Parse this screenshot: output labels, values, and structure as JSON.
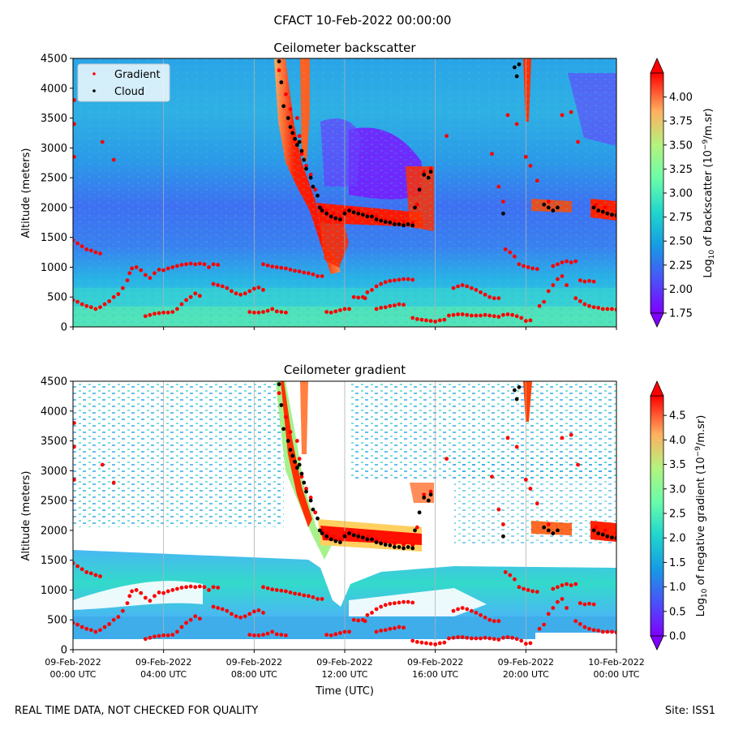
{
  "figure_title": "CFACT 10-Feb-2022 00:00:00",
  "footer_left": "REAL TIME DATA, NOT CHECKED FOR QUALITY",
  "footer_right": "Site: ISS1",
  "time_axis": {
    "xlabel": "Time (UTC)",
    "ticks": [
      {
        "date": "09-Feb-2022",
        "time": "00:00 UTC"
      },
      {
        "date": "09-Feb-2022",
        "time": "04:00 UTC"
      },
      {
        "date": "09-Feb-2022",
        "time": "08:00 UTC"
      },
      {
        "date": "09-Feb-2022",
        "time": "12:00 UTC"
      },
      {
        "date": "09-Feb-2022",
        "time": "16:00 UTC"
      },
      {
        "date": "09-Feb-2022",
        "time": "20:00 UTC"
      },
      {
        "date": "10-Feb-2022",
        "time": "00:00 UTC"
      }
    ]
  },
  "legend": {
    "gradient_label": "Gradient",
    "cloud_label": "Cloud"
  },
  "colors": {
    "gradient_marker": "#ff0000",
    "cloud_marker": "#000000"
  },
  "chart_data": [
    {
      "type": "heatmap",
      "title": "Ceilometer backscatter",
      "ylabel": "Altitude (meters)",
      "ylim": [
        0,
        4500
      ],
      "yticks": [
        0,
        500,
        1000,
        1500,
        2000,
        2500,
        3000,
        3500,
        4000,
        4500
      ],
      "colorbar": {
        "label": "Log10 of backscatter (10^-9/m.sr)",
        "label_main": "Log",
        "label_sub": "10",
        "label_rest": " of backscatter (10",
        "label_sup": "−9",
        "label_end": "/m.sr)",
        "range": [
          1.75,
          4.25
        ],
        "ticks": [
          "1.75",
          "2.00",
          "2.25",
          "2.50",
          "2.75",
          "3.00",
          "3.25",
          "3.50",
          "3.75",
          "4.00"
        ],
        "colormap": "rainbow"
      },
      "legend_placement": "top-left",
      "grid": "vertical lines at tick positions"
    },
    {
      "type": "heatmap",
      "title": "Ceilometer gradient",
      "ylabel": "Altitude (meters)",
      "ylim": [
        0,
        4500
      ],
      "yticks": [
        0,
        500,
        1000,
        1500,
        2000,
        2500,
        3000,
        3500,
        4000,
        4500
      ],
      "colorbar": {
        "label": "Log10 of negative gradient (10^-9/m.sr)",
        "label_main": "Log",
        "label_sub": "10",
        "label_rest": " of negative gradient (10",
        "label_sup": "−9",
        "label_end": "/m.sr)",
        "range": [
          0.0,
          4.9
        ],
        "ticks": [
          "0.0",
          "0.5",
          "1.0",
          "1.5",
          "2.0",
          "2.5",
          "3.0",
          "3.5",
          "4.0",
          "4.5"
        ],
        "colormap": "rainbow"
      },
      "grid": "vertical lines at tick positions"
    }
  ],
  "series_points": {
    "x_unit": "hours since 09-Feb-2022 00:00 UTC",
    "y_unit": "meters",
    "cloud_base": [
      [
        9.1,
        4450
      ],
      [
        9.2,
        4100
      ],
      [
        9.3,
        3700
      ],
      [
        9.5,
        3500
      ],
      [
        9.6,
        3350
      ],
      [
        9.7,
        3250
      ],
      [
        9.8,
        3150
      ],
      [
        9.9,
        3050
      ],
      [
        10.0,
        3100
      ],
      [
        10.1,
        2950
      ],
      [
        10.2,
        2800
      ],
      [
        10.3,
        2650
      ],
      [
        10.5,
        2500
      ],
      [
        10.6,
        2350
      ],
      [
        10.8,
        2200
      ],
      [
        10.9,
        2000
      ],
      [
        11.0,
        1950
      ],
      [
        11.2,
        1900
      ],
      [
        11.4,
        1850
      ],
      [
        11.6,
        1820
      ],
      [
        11.8,
        1800
      ],
      [
        12.0,
        1900
      ],
      [
        12.2,
        1950
      ],
      [
        12.4,
        1920
      ],
      [
        12.6,
        1900
      ],
      [
        12.8,
        1880
      ],
      [
        13.0,
        1850
      ],
      [
        13.2,
        1850
      ],
      [
        13.4,
        1800
      ],
      [
        13.6,
        1780
      ],
      [
        13.8,
        1760
      ],
      [
        14.0,
        1750
      ],
      [
        14.2,
        1720
      ],
      [
        14.4,
        1720
      ],
      [
        14.6,
        1700
      ],
      [
        14.8,
        1720
      ],
      [
        15.0,
        1700
      ],
      [
        15.1,
        2000
      ],
      [
        15.3,
        2300
      ],
      [
        15.5,
        2550
      ],
      [
        15.7,
        2500
      ],
      [
        15.8,
        2600
      ],
      [
        19.0,
        1900
      ],
      [
        19.5,
        4350
      ],
      [
        19.6,
        4200
      ],
      [
        19.7,
        4400
      ],
      [
        20.8,
        2050
      ],
      [
        21.0,
        2000
      ],
      [
        21.2,
        1950
      ],
      [
        21.4,
        2000
      ],
      [
        23.0,
        2000
      ],
      [
        23.2,
        1950
      ],
      [
        23.4,
        1930
      ],
      [
        23.6,
        1900
      ],
      [
        23.8,
        1880
      ],
      [
        24.0,
        1870
      ]
    ],
    "gradient_upper": [
      [
        0.05,
        3800
      ],
      [
        0.05,
        3400
      ],
      [
        0.05,
        2850
      ],
      [
        1.3,
        3100
      ],
      [
        1.8,
        2800
      ],
      [
        9.1,
        4300
      ],
      [
        9.4,
        3900
      ],
      [
        9.6,
        3650
      ],
      [
        9.9,
        3500
      ],
      [
        10.0,
        3200
      ],
      [
        10.1,
        2900
      ],
      [
        10.3,
        2700
      ],
      [
        10.5,
        2550
      ],
      [
        10.7,
        2300
      ],
      [
        11.0,
        2000
      ],
      [
        11.2,
        1950
      ],
      [
        11.5,
        1900
      ],
      [
        11.8,
        1850
      ],
      [
        12.0,
        1950
      ],
      [
        12.3,
        1980
      ],
      [
        12.6,
        1950
      ],
      [
        13.0,
        1900
      ],
      [
        13.4,
        1850
      ],
      [
        13.8,
        1800
      ],
      [
        14.2,
        1780
      ],
      [
        14.6,
        1760
      ],
      [
        15.0,
        1750
      ],
      [
        15.2,
        2050
      ],
      [
        15.5,
        2600
      ],
      [
        15.8,
        2650
      ],
      [
        19.2,
        3550
      ],
      [
        19.6,
        3400
      ],
      [
        20.0,
        2850
      ],
      [
        20.2,
        2700
      ],
      [
        20.5,
        2450
      ],
      [
        21.0,
        2100
      ],
      [
        21.6,
        3550
      ],
      [
        22.0,
        3600
      ],
      [
        22.3,
        3100
      ],
      [
        23.1,
        2050
      ],
      [
        23.5,
        2000
      ],
      [
        24.0,
        1950
      ],
      [
        18.5,
        2900
      ],
      [
        18.8,
        2350
      ],
      [
        19.0,
        2100
      ],
      [
        16.5,
        3200
      ]
    ],
    "gradient_lower": [
      [
        0.0,
        1450
      ],
      [
        0.2,
        1400
      ],
      [
        0.4,
        1350
      ],
      [
        0.6,
        1300
      ],
      [
        0.8,
        1280
      ],
      [
        1.0,
        1250
      ],
      [
        1.2,
        1230
      ],
      [
        0.0,
        450
      ],
      [
        0.2,
        420
      ],
      [
        0.4,
        380
      ],
      [
        0.6,
        350
      ],
      [
        0.8,
        330
      ],
      [
        1.0,
        300
      ],
      [
        1.2,
        330
      ],
      [
        1.4,
        380
      ],
      [
        1.6,
        430
      ],
      [
        1.8,
        500
      ],
      [
        2.0,
        550
      ],
      [
        2.2,
        650
      ],
      [
        2.4,
        780
      ],
      [
        2.5,
        900
      ],
      [
        2.6,
        980
      ],
      [
        2.8,
        1000
      ],
      [
        3.0,
        950
      ],
      [
        3.2,
        870
      ],
      [
        3.4,
        820
      ],
      [
        3.6,
        900
      ],
      [
        3.8,
        960
      ],
      [
        4.0,
        950
      ],
      [
        4.2,
        980
      ],
      [
        4.4,
        1000
      ],
      [
        4.6,
        1020
      ],
      [
        4.8,
        1040
      ],
      [
        5.0,
        1050
      ],
      [
        5.2,
        1060
      ],
      [
        5.4,
        1050
      ],
      [
        5.6,
        1060
      ],
      [
        5.8,
        1050
      ],
      [
        6.0,
        1000
      ],
      [
        6.2,
        1050
      ],
      [
        6.4,
        1040
      ],
      [
        3.2,
        180
      ],
      [
        3.4,
        200
      ],
      [
        3.6,
        220
      ],
      [
        3.8,
        230
      ],
      [
        4.0,
        240
      ],
      [
        4.2,
        240
      ],
      [
        4.4,
        250
      ],
      [
        4.6,
        300
      ],
      [
        4.8,
        380
      ],
      [
        5.0,
        450
      ],
      [
        5.2,
        500
      ],
      [
        5.4,
        560
      ],
      [
        5.6,
        520
      ],
      [
        6.2,
        720
      ],
      [
        6.4,
        700
      ],
      [
        6.6,
        680
      ],
      [
        6.8,
        650
      ],
      [
        7.0,
        600
      ],
      [
        7.2,
        560
      ],
      [
        7.4,
        540
      ],
      [
        7.6,
        560
      ],
      [
        7.8,
        600
      ],
      [
        8.0,
        640
      ],
      [
        8.2,
        660
      ],
      [
        8.4,
        620
      ],
      [
        7.8,
        250
      ],
      [
        8.0,
        240
      ],
      [
        8.2,
        240
      ],
      [
        8.4,
        250
      ],
      [
        8.6,
        270
      ],
      [
        8.8,
        300
      ],
      [
        9.0,
        260
      ],
      [
        9.2,
        250
      ],
      [
        9.4,
        240
      ],
      [
        8.4,
        1050
      ],
      [
        8.6,
        1030
      ],
      [
        8.8,
        1010
      ],
      [
        9.0,
        1000
      ],
      [
        9.2,
        990
      ],
      [
        9.4,
        980
      ],
      [
        9.6,
        960
      ],
      [
        9.8,
        940
      ],
      [
        10.0,
        930
      ],
      [
        10.2,
        910
      ],
      [
        10.4,
        900
      ],
      [
        10.6,
        880
      ],
      [
        10.8,
        850
      ],
      [
        11.0,
        850
      ],
      [
        11.2,
        250
      ],
      [
        11.4,
        240
      ],
      [
        11.6,
        260
      ],
      [
        11.8,
        280
      ],
      [
        12.0,
        300
      ],
      [
        12.2,
        300
      ],
      [
        12.4,
        500
      ],
      [
        12.6,
        490
      ],
      [
        12.8,
        500
      ],
      [
        12.9,
        480
      ],
      [
        13.0,
        580
      ],
      [
        13.2,
        620
      ],
      [
        13.4,
        680
      ],
      [
        13.6,
        720
      ],
      [
        13.8,
        750
      ],
      [
        14.0,
        770
      ],
      [
        14.2,
        780
      ],
      [
        14.4,
        790
      ],
      [
        14.6,
        800
      ],
      [
        14.8,
        800
      ],
      [
        15.0,
        790
      ],
      [
        13.4,
        300
      ],
      [
        13.6,
        320
      ],
      [
        13.8,
        330
      ],
      [
        14.0,
        350
      ],
      [
        14.2,
        360
      ],
      [
        14.4,
        380
      ],
      [
        14.6,
        370
      ],
      [
        15.0,
        150
      ],
      [
        15.2,
        130
      ],
      [
        15.4,
        120
      ],
      [
        15.6,
        110
      ],
      [
        15.8,
        100
      ],
      [
        16.0,
        90
      ],
      [
        16.2,
        110
      ],
      [
        16.4,
        120
      ],
      [
        16.8,
        650
      ],
      [
        17.0,
        680
      ],
      [
        17.2,
        700
      ],
      [
        17.4,
        680
      ],
      [
        17.6,
        650
      ],
      [
        17.8,
        620
      ],
      [
        18.0,
        580
      ],
      [
        18.2,
        540
      ],
      [
        18.4,
        500
      ],
      [
        18.6,
        480
      ],
      [
        18.8,
        480
      ],
      [
        16.6,
        190
      ],
      [
        16.8,
        200
      ],
      [
        17.0,
        210
      ],
      [
        17.2,
        210
      ],
      [
        17.4,
        200
      ],
      [
        17.6,
        190
      ],
      [
        17.8,
        190
      ],
      [
        18.0,
        190
      ],
      [
        18.2,
        200
      ],
      [
        18.4,
        190
      ],
      [
        18.6,
        180
      ],
      [
        18.8,
        170
      ],
      [
        19.0,
        200
      ],
      [
        19.2,
        210
      ],
      [
        19.4,
        200
      ],
      [
        19.6,
        180
      ],
      [
        19.8,
        150
      ],
      [
        20.0,
        100
      ],
      [
        20.2,
        110
      ],
      [
        19.1,
        1300
      ],
      [
        19.3,
        1250
      ],
      [
        19.5,
        1180
      ],
      [
        19.7,
        1050
      ],
      [
        19.9,
        1020
      ],
      [
        20.1,
        1000
      ],
      [
        20.3,
        980
      ],
      [
        20.5,
        970
      ],
      [
        21.2,
        1020
      ],
      [
        21.4,
        1050
      ],
      [
        21.6,
        1080
      ],
      [
        21.8,
        1100
      ],
      [
        22.0,
        1080
      ],
      [
        22.2,
        1100
      ],
      [
        22.4,
        780
      ],
      [
        22.6,
        760
      ],
      [
        22.8,
        770
      ],
      [
        23.0,
        760
      ],
      [
        22.2,
        480
      ],
      [
        22.4,
        430
      ],
      [
        22.6,
        380
      ],
      [
        22.8,
        350
      ],
      [
        23.0,
        330
      ],
      [
        23.2,
        320
      ],
      [
        23.4,
        300
      ],
      [
        23.6,
        300
      ],
      [
        23.8,
        300
      ],
      [
        24.0,
        290
      ],
      [
        20.6,
        350
      ],
      [
        20.8,
        420
      ],
      [
        21.0,
        600
      ],
      [
        21.2,
        700
      ],
      [
        21.4,
        800
      ],
      [
        21.6,
        850
      ],
      [
        21.8,
        700
      ]
    ]
  }
}
